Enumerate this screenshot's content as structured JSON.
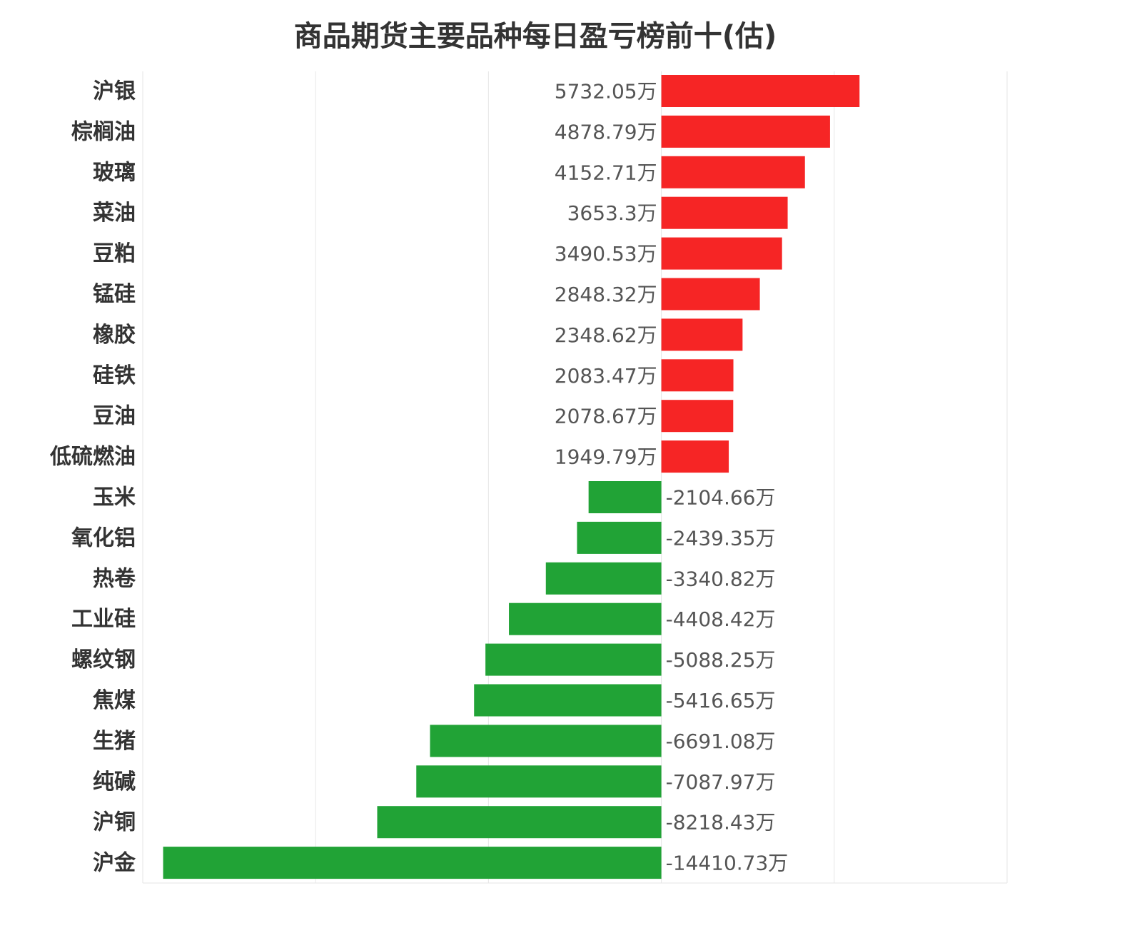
{
  "title": "商品期货主要品种每日盈亏榜前十(估)",
  "colors": {
    "positive": "#f62525",
    "negative": "#21a336",
    "grid": "#e6e6e6",
    "text": "#333333",
    "value_text": "#555555"
  },
  "chart_data": {
    "type": "bar",
    "orientation": "horizontal",
    "title": "商品期货主要品种每日盈亏榜前十(估)",
    "unit": "万",
    "xlim": [
      -15000,
      10000
    ],
    "grid": true,
    "categories": [
      "沪银",
      "棕榈油",
      "玻璃",
      "菜油",
      "豆粕",
      "锰硅",
      "橡胶",
      "硅铁",
      "豆油",
      "低硫燃油",
      "玉米",
      "氧化铝",
      "热卷",
      "工业硅",
      "螺纹钢",
      "焦煤",
      "生猪",
      "纯碱",
      "沪铜",
      "沪金"
    ],
    "values": [
      5732.05,
      4878.79,
      4152.71,
      3653.3,
      3490.53,
      2848.32,
      2348.62,
      2083.47,
      2078.67,
      1949.79,
      -2104.66,
      -2439.35,
      -3340.82,
      -4408.42,
      -5088.25,
      -5416.65,
      -6691.08,
      -7087.97,
      -8218.43,
      -14410.73
    ],
    "data_labels": [
      "5732.05万",
      "4878.79万",
      "4152.71万",
      "3653.3万",
      "3490.53万",
      "2848.32万",
      "2348.62万",
      "2083.47万",
      "2078.67万",
      "1949.79万",
      "-2104.66万",
      "-2439.35万",
      "-3340.82万",
      "-4408.42万",
      "-5088.25万",
      "-5416.65万",
      "-6691.08万",
      "-7087.97万",
      "-8218.43万",
      "-14410.73万"
    ]
  }
}
